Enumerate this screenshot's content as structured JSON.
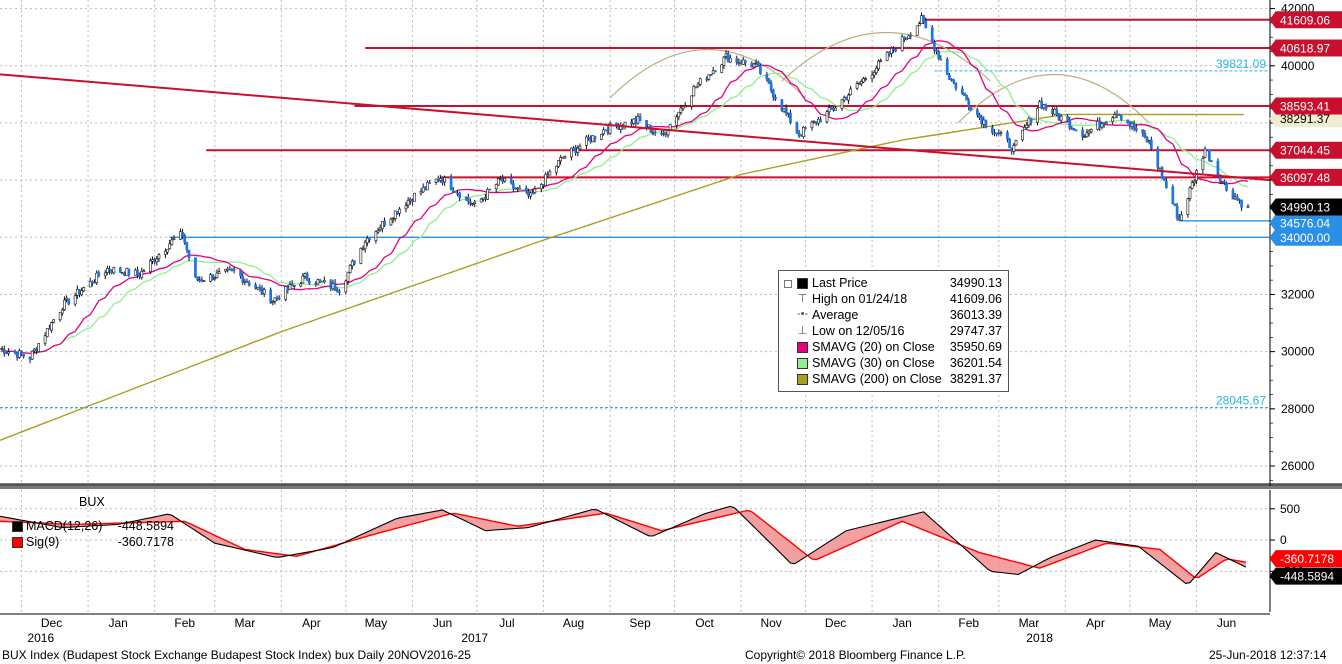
{
  "footer": {
    "left": "BUX Index (Budapest Stock Exchange Budapest Stock Index) bux  Daily 20NOV2016-25",
    "center": "Copyright© 2018 Bloomberg Finance L.P.",
    "right": "25-Jun-2018 12:37:14"
  },
  "legend": {
    "rows": [
      {
        "name": "Last Price",
        "value": "34990.13",
        "color": "#000000",
        "glyph": ""
      },
      {
        "name": "High on 01/24/18",
        "value": "41609.06",
        "color": "",
        "glyph": "⊤"
      },
      {
        "name": "Average",
        "value": "36013.39",
        "color": "",
        "glyph": "-•-"
      },
      {
        "name": "Low on 12/05/16",
        "value": "29747.37",
        "color": "",
        "glyph": "⊥"
      },
      {
        "name": "SMAVG (20) on Close",
        "value": "35950.69",
        "color": "#e6007e",
        "glyph": ""
      },
      {
        "name": "SMAVG (30) on Close",
        "value": "36201.54",
        "color": "#8ef08e",
        "glyph": ""
      },
      {
        "name": "SMAVG (200) on Close",
        "value": "38291.37",
        "color": "#a8a020",
        "glyph": ""
      }
    ]
  },
  "macd_legend": {
    "title": "BUX",
    "rows": [
      {
        "name": "MACD(12,26)",
        "value": "-448.5894",
        "color": "#000000"
      },
      {
        "name": "Sig(9)",
        "value": "-360.7178",
        "color": "#ff0000"
      }
    ]
  },
  "colors": {
    "candle_up": "#ffffff",
    "candle_down": "#1e73e6",
    "sma20": "#e6007e",
    "sma30": "#8ef08e",
    "sma200": "#a8a020",
    "trend": "#c8102e",
    "support": "#2a8fe6",
    "macd": "#000000",
    "signal": "#ff0000",
    "macd_fill": "#f08080",
    "grid": "#bbbbbb"
  },
  "chart_data": [
    {
      "type": "candlestick",
      "title": "BUX Index",
      "ylim": [
        25300,
        42300
      ],
      "y_ticks": [
        26000,
        28000,
        30000,
        32000,
        34000,
        36000,
        38000,
        40000,
        42000
      ],
      "months": [
        "Dec",
        "Jan",
        "Feb",
        "Mar",
        "Apr",
        "May",
        "Jun",
        "Jul",
        "Aug",
        "Sep",
        "Oct",
        "Nov",
        "Dec",
        "Jan",
        "Feb",
        "Mar",
        "Apr",
        "May",
        "Jun"
      ],
      "years": [
        "2016",
        "2017",
        "2018"
      ],
      "price_path": [
        {
          "date": "2016-11-21",
          "close": 30100
        },
        {
          "date": "2016-12-05",
          "close": 29800
        },
        {
          "date": "2016-12-20",
          "close": 31600
        },
        {
          "date": "2017-01-10",
          "close": 32900
        },
        {
          "date": "2017-01-25",
          "close": 32700
        },
        {
          "date": "2017-02-08",
          "close": 33800
        },
        {
          "date": "2017-02-14",
          "close": 34100
        },
        {
          "date": "2017-02-20",
          "close": 32500
        },
        {
          "date": "2017-03-10",
          "close": 32800
        },
        {
          "date": "2017-03-28",
          "close": 31800
        },
        {
          "date": "2017-04-12",
          "close": 32600
        },
        {
          "date": "2017-04-28",
          "close": 32200
        },
        {
          "date": "2017-05-10",
          "close": 33900
        },
        {
          "date": "2017-05-30",
          "close": 35300
        },
        {
          "date": "2017-06-14",
          "close": 36100
        },
        {
          "date": "2017-06-30",
          "close": 35100
        },
        {
          "date": "2017-07-12",
          "close": 36000
        },
        {
          "date": "2017-07-26",
          "close": 35400
        },
        {
          "date": "2017-08-10",
          "close": 36800
        },
        {
          "date": "2017-08-30",
          "close": 37800
        },
        {
          "date": "2017-09-14",
          "close": 38100
        },
        {
          "date": "2017-09-25",
          "close": 37500
        },
        {
          "date": "2017-10-10",
          "close": 39200
        },
        {
          "date": "2017-10-25",
          "close": 40300
        },
        {
          "date": "2017-11-08",
          "close": 40000
        },
        {
          "date": "2017-11-28",
          "close": 37600
        },
        {
          "date": "2017-12-14",
          "close": 38500
        },
        {
          "date": "2018-01-05",
          "close": 40100
        },
        {
          "date": "2018-01-24",
          "close": 41600
        },
        {
          "date": "2018-02-06",
          "close": 39600
        },
        {
          "date": "2018-02-20",
          "close": 38200
        },
        {
          "date": "2018-03-08",
          "close": 37100
        },
        {
          "date": "2018-03-20",
          "close": 38700
        },
        {
          "date": "2018-04-10",
          "close": 37600
        },
        {
          "date": "2018-04-25",
          "close": 38400
        },
        {
          "date": "2018-05-10",
          "close": 37300
        },
        {
          "date": "2018-05-24",
          "close": 34600
        },
        {
          "date": "2018-06-05",
          "close": 37100
        },
        {
          "date": "2018-06-15",
          "close": 35700
        },
        {
          "date": "2018-06-25",
          "close": 34990
        }
      ],
      "series": [
        {
          "name": "Last Price",
          "last": 34990.13
        },
        {
          "name": "SMAVG (20) on Close",
          "last": 35950.69
        },
        {
          "name": "SMAVG (30) on Close",
          "last": 36201.54
        },
        {
          "name": "SMAVG (200) on Close",
          "last": 38291.37,
          "path": [
            {
              "date": "2016-11-21",
              "value": 26900
            },
            {
              "date": "2017-04-01",
              "value": 30700
            },
            {
              "date": "2017-08-01",
              "value": 33900
            },
            {
              "date": "2017-11-01",
              "value": 36200
            },
            {
              "date": "2018-01-15",
              "value": 37400
            },
            {
              "date": "2018-04-01",
              "value": 38300
            },
            {
              "date": "2018-06-25",
              "value": 38291
            }
          ]
        }
      ],
      "stats": {
        "high": 41609.06,
        "high_date": "01/24/18",
        "low": 29747.37,
        "low_date": "12/05/16",
        "average": 36013.39
      },
      "horizontal_levels": [
        {
          "value": 41609.06,
          "label": "41609.06",
          "color": "#c8102e",
          "style": "flag"
        },
        {
          "value": 40618.97,
          "label": "40618.97",
          "color": "#c8102e",
          "style": "flag"
        },
        {
          "value": 39821.09,
          "label": "39821.09",
          "color": "#2ab4e6",
          "style": "text"
        },
        {
          "value": 38593.41,
          "label": "38593.41",
          "color": "#c8102e",
          "style": "flag"
        },
        {
          "value": 38291.37,
          "label": "38291.37",
          "color": "#a8a020",
          "style": "flag"
        },
        {
          "value": 37044.45,
          "label": "37044.45",
          "color": "#c8102e",
          "style": "flag"
        },
        {
          "value": 36097.48,
          "label": "36097.48",
          "color": "#c8102e",
          "style": "flag"
        },
        {
          "value": 34990.13,
          "label": "34990.13",
          "color": "#000000",
          "style": "flag"
        },
        {
          "value": 34576.04,
          "label": "34576.04",
          "color": "#2a8fe6",
          "style": "flag"
        },
        {
          "value": 34000.0,
          "label": "34000.00",
          "color": "#2a8fe6",
          "style": "flag"
        },
        {
          "value": 28045.67,
          "label": "28045.67",
          "color": "#2ab4e6",
          "style": "text"
        }
      ],
      "trendline": [
        {
          "date": "2016-11-21",
          "value": 39700
        },
        {
          "date": "2018-06-25",
          "value": 36000
        }
      ]
    },
    {
      "type": "line",
      "title": "BUX",
      "ylim": [
        -1150,
        800
      ],
      "y_ticks": [
        -500,
        0,
        500
      ],
      "y_tick_labels": [
        "-500",
        "0",
        "500"
      ],
      "series": [
        {
          "name": "MACD(12,26)",
          "last": -448.5894
        },
        {
          "name": "Sig(9)",
          "last": -360.7178
        }
      ],
      "macd_path": [
        {
          "date": "2016-11-21",
          "value": 380
        },
        {
          "date": "2016-12-20",
          "value": 200
        },
        {
          "date": "2017-01-15",
          "value": 250
        },
        {
          "date": "2017-02-08",
          "value": 420
        },
        {
          "date": "2017-03-01",
          "value": -50
        },
        {
          "date": "2017-03-30",
          "value": -280
        },
        {
          "date": "2017-04-25",
          "value": -120
        },
        {
          "date": "2017-05-25",
          "value": 350
        },
        {
          "date": "2017-06-15",
          "value": 480
        },
        {
          "date": "2017-07-05",
          "value": 150
        },
        {
          "date": "2017-07-25",
          "value": 200
        },
        {
          "date": "2017-08-25",
          "value": 500
        },
        {
          "date": "2017-09-20",
          "value": 50
        },
        {
          "date": "2017-10-15",
          "value": 420
        },
        {
          "date": "2017-10-28",
          "value": 550
        },
        {
          "date": "2017-11-25",
          "value": -400
        },
        {
          "date": "2017-12-20",
          "value": 150
        },
        {
          "date": "2018-01-25",
          "value": 450
        },
        {
          "date": "2018-02-25",
          "value": -500
        },
        {
          "date": "2018-03-10",
          "value": -550
        },
        {
          "date": "2018-03-25",
          "value": -280
        },
        {
          "date": "2018-04-15",
          "value": 0
        },
        {
          "date": "2018-05-05",
          "value": -100
        },
        {
          "date": "2018-05-28",
          "value": -720
        },
        {
          "date": "2018-06-10",
          "value": -200
        },
        {
          "date": "2018-06-25",
          "value": -448.59
        }
      ],
      "signal_path": [
        {
          "date": "2016-11-21",
          "value": 300
        },
        {
          "date": "2016-12-25",
          "value": 250
        },
        {
          "date": "2017-02-15",
          "value": 300
        },
        {
          "date": "2017-03-15",
          "value": -150
        },
        {
          "date": "2017-04-08",
          "value": -260
        },
        {
          "date": "2017-05-15",
          "value": 100
        },
        {
          "date": "2017-06-20",
          "value": 430
        },
        {
          "date": "2017-07-20",
          "value": 220
        },
        {
          "date": "2017-08-30",
          "value": 430
        },
        {
          "date": "2017-09-25",
          "value": 150
        },
        {
          "date": "2017-11-05",
          "value": 480
        },
        {
          "date": "2017-12-05",
          "value": -330
        },
        {
          "date": "2018-01-15",
          "value": 300
        },
        {
          "date": "2018-02-20",
          "value": -200
        },
        {
          "date": "2018-03-20",
          "value": -450
        },
        {
          "date": "2018-04-20",
          "value": -50
        },
        {
          "date": "2018-05-15",
          "value": -150
        },
        {
          "date": "2018-06-01",
          "value": -620
        },
        {
          "date": "2018-06-15",
          "value": -300
        },
        {
          "date": "2018-06-25",
          "value": -360.72
        }
      ],
      "flags": [
        {
          "value": -360.7178,
          "label": "-360.7178",
          "color": "#ff0000"
        },
        {
          "value": -448.5894,
          "label": "-448.5894",
          "color": "#000000"
        }
      ]
    }
  ]
}
